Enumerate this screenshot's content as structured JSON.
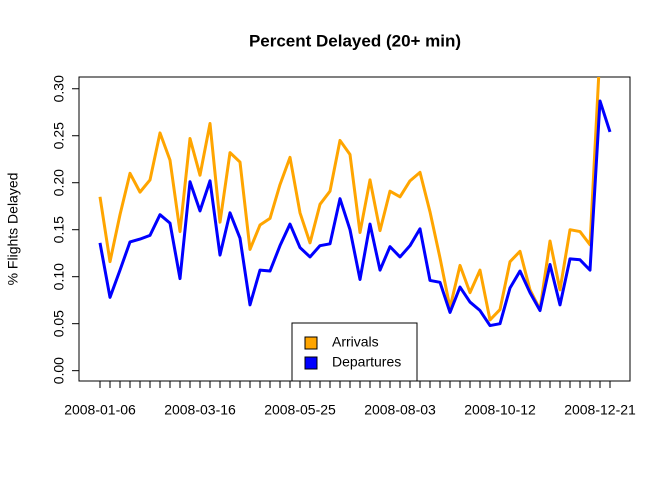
{
  "chart_data": {
    "type": "line",
    "title": "Percent Delayed (20+ min)",
    "y_label": "% Flights Delayed",
    "categories": [
      "2008-01-06",
      null,
      null,
      null,
      null,
      null,
      null,
      null,
      null,
      null,
      "2008-03-16",
      null,
      null,
      null,
      null,
      null,
      null,
      null,
      null,
      null,
      "2008-05-25",
      null,
      null,
      null,
      null,
      null,
      null,
      null,
      null,
      null,
      "2008-08-03",
      null,
      null,
      null,
      null,
      null,
      null,
      null,
      null,
      null,
      "2008-10-12",
      null,
      null,
      null,
      null,
      null,
      null,
      null,
      null,
      null,
      "2008-12-21",
      null
    ],
    "series": [
      {
        "name": "Arrivals",
        "color": "#ffa500",
        "values": [
          0.185,
          0.116,
          0.166,
          0.21,
          0.19,
          0.203,
          0.253,
          0.224,
          0.148,
          0.247,
          0.208,
          0.263,
          0.158,
          0.232,
          0.222,
          0.129,
          0.155,
          0.162,
          0.198,
          0.227,
          0.168,
          0.136,
          0.177,
          0.191,
          0.245,
          0.23,
          0.147,
          0.203,
          0.149,
          0.191,
          0.185,
          0.202,
          0.211,
          0.169,
          0.12,
          0.067,
          0.112,
          0.083,
          0.107,
          0.054,
          0.065,
          0.116,
          0.127,
          0.086,
          0.065,
          0.138,
          0.086,
          0.15,
          0.148,
          0.134,
          0.34,
          0.33
        ]
      },
      {
        "name": "Departures",
        "color": "#0000ff",
        "values": [
          0.136,
          0.078,
          0.107,
          0.137,
          0.14,
          0.144,
          0.166,
          0.157,
          0.098,
          0.201,
          0.17,
          0.202,
          0.123,
          0.168,
          0.141,
          0.07,
          0.107,
          0.106,
          0.133,
          0.156,
          0.131,
          0.121,
          0.133,
          0.135,
          0.183,
          0.15,
          0.097,
          0.156,
          0.107,
          0.132,
          0.121,
          0.133,
          0.151,
          0.096,
          0.094,
          0.062,
          0.089,
          0.073,
          0.064,
          0.048,
          0.05,
          0.088,
          0.106,
          0.083,
          0.064,
          0.113,
          0.07,
          0.119,
          0.118,
          0.107,
          0.287,
          0.254
        ]
      }
    ],
    "ylim": [
      -0.011,
      0.3125
    ],
    "yticks": [
      {
        "value": 0,
        "label": "0.00"
      },
      {
        "value": 0.05,
        "label": "0.05"
      },
      {
        "value": 0.1,
        "label": "0.10"
      },
      {
        "value": 0.15,
        "label": "0.15"
      },
      {
        "value": 0.2,
        "label": "0.20"
      },
      {
        "value": 0.25,
        "label": "0.25"
      },
      {
        "value": 0.3,
        "label": "0.30"
      }
    ],
    "legend": "bottom"
  }
}
